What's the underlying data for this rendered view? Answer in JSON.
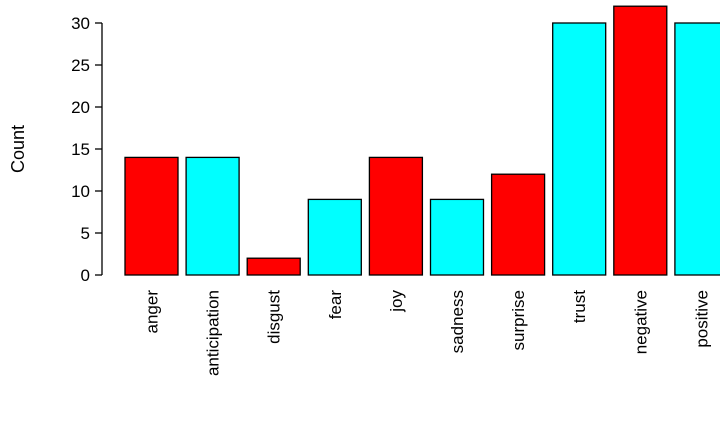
{
  "chart_data": {
    "type": "bar",
    "ylabel": "Count",
    "xlabel": "",
    "ylim": [
      0,
      30
    ],
    "yticks": [
      0,
      5,
      10,
      15,
      20,
      25,
      30
    ],
    "categories": [
      "anger",
      "anticipation",
      "disgust",
      "fear",
      "joy",
      "sadness",
      "surprise",
      "trust",
      "negative",
      "positive"
    ],
    "values": [
      14,
      14,
      2,
      9,
      14,
      9,
      12,
      30,
      32,
      30
    ],
    "colors": [
      "#ff0000",
      "#00ffff",
      "#ff0000",
      "#00ffff",
      "#ff0000",
      "#00ffff",
      "#ff0000",
      "#00ffff",
      "#ff0000",
      "#00ffff"
    ],
    "grid": false,
    "legend": "none"
  }
}
